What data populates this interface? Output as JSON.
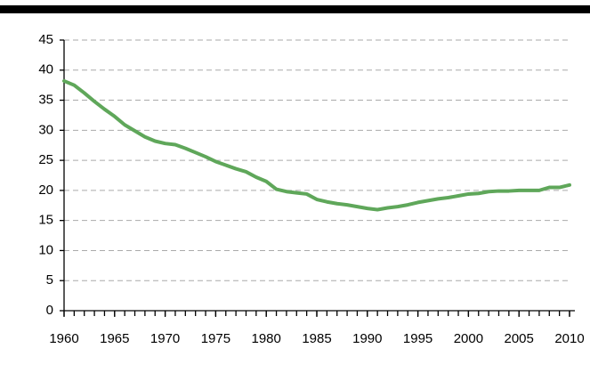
{
  "chart_data": {
    "type": "line",
    "x": [
      1960,
      1961,
      1962,
      1963,
      1964,
      1965,
      1966,
      1967,
      1968,
      1969,
      1970,
      1971,
      1972,
      1973,
      1974,
      1975,
      1976,
      1977,
      1978,
      1979,
      1980,
      1981,
      1982,
      1983,
      1984,
      1985,
      1986,
      1987,
      1988,
      1989,
      1990,
      1991,
      1992,
      1993,
      1994,
      1995,
      1996,
      1997,
      1998,
      1999,
      2000,
      2001,
      2002,
      2003,
      2004,
      2005,
      2006,
      2007,
      2008,
      2009,
      2010
    ],
    "series": [
      {
        "color": "#5fa75a",
        "values": [
          38.2,
          37.5,
          36.2,
          34.8,
          33.5,
          32.3,
          30.9,
          29.9,
          28.9,
          28.2,
          27.8,
          27.6,
          27.0,
          26.3,
          25.6,
          24.8,
          24.2,
          23.6,
          23.1,
          22.2,
          21.5,
          20.2,
          19.8,
          19.6,
          19.4,
          18.5,
          18.1,
          17.8,
          17.6,
          17.3,
          17.0,
          16.8,
          17.1,
          17.3,
          17.6,
          18.0,
          18.3,
          18.6,
          18.8,
          19.1,
          19.4,
          19.5,
          19.8,
          19.9,
          19.9,
          20.0,
          20.0,
          20.0,
          20.5,
          20.5,
          20.9
        ]
      }
    ],
    "xlim": [
      1960,
      2010
    ],
    "xticks": [
      1960,
      1965,
      1970,
      1975,
      1980,
      1985,
      1990,
      1995,
      2000,
      2005,
      2010
    ],
    "ylim": [
      0,
      45
    ],
    "yticks": [
      0,
      5,
      10,
      15,
      20,
      25,
      30,
      35,
      40,
      45
    ],
    "grid": true
  }
}
